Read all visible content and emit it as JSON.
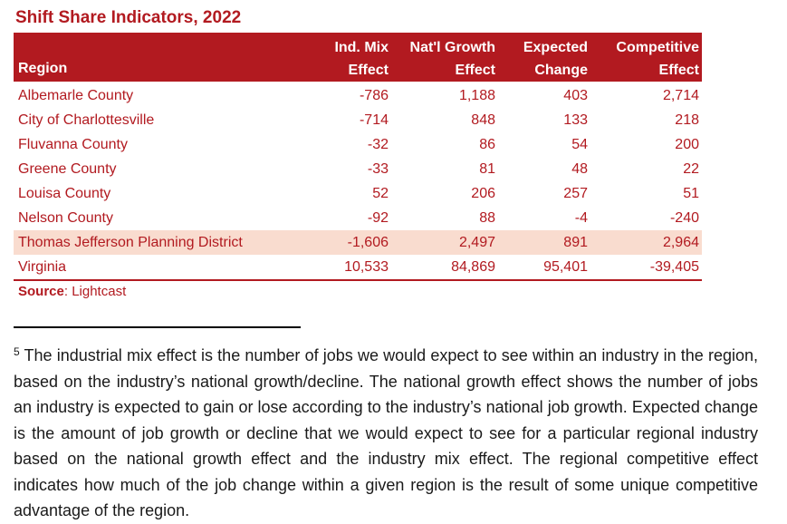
{
  "title": "Shift Share Indicators, 2022",
  "table": {
    "headers": {
      "region": "Region",
      "col1_l1": "Ind. Mix",
      "col1_l2": "Effect",
      "col2_l1": "Nat'l Growth",
      "col2_l2": "Effect",
      "col3_l1": "Expected",
      "col3_l2": "Change",
      "col4_l1": "Competitive",
      "col4_l2": "Effect"
    },
    "rows": [
      {
        "region": "Albemarle County",
        "ind_mix": "-786",
        "natl_growth": "1,188",
        "expected": "403",
        "competitive": "2,714"
      },
      {
        "region": "City of Charlottesville",
        "ind_mix": "-714",
        "natl_growth": "848",
        "expected": "133",
        "competitive": "218"
      },
      {
        "region": "Fluvanna County",
        "ind_mix": "-32",
        "natl_growth": "86",
        "expected": "54",
        "competitive": "200"
      },
      {
        "region": "Greene County",
        "ind_mix": "-33",
        "natl_growth": "81",
        "expected": "48",
        "competitive": "22"
      },
      {
        "region": "Louisa County",
        "ind_mix": "52",
        "natl_growth": "206",
        "expected": "257",
        "competitive": "51"
      },
      {
        "region": "Nelson County",
        "ind_mix": "-92",
        "natl_growth": "88",
        "expected": "-4",
        "competitive": "-240"
      },
      {
        "region": "Thomas Jefferson Planning District",
        "ind_mix": "-1,606",
        "natl_growth": "2,497",
        "expected": "891",
        "competitive": "2,964"
      },
      {
        "region": "Virginia",
        "ind_mix": "10,533",
        "natl_growth": "84,869",
        "expected": "95,401",
        "competitive": "-39,405"
      }
    ]
  },
  "source": {
    "label": "Source",
    "text": ": Lightcast"
  },
  "footnote": {
    "marker": "5",
    "text": "The industrial mix effect is the number of jobs we would expect to see within an industry in the region, based on the industry’s national growth/decline. The national growth effect shows the number of jobs an industry is expected to gain or lose according to the industry’s national job growth. Expected change is the amount of job growth or decline that we would expect to see for a particular regional industry based on the national growth effect and the industry mix effect. The regional competitive effect indicates how much of the job change within a given region is the result of some unique competitive advantage of the region."
  },
  "colors": {
    "accent": "#b21a20",
    "highlight_row": "#f9dccf"
  }
}
